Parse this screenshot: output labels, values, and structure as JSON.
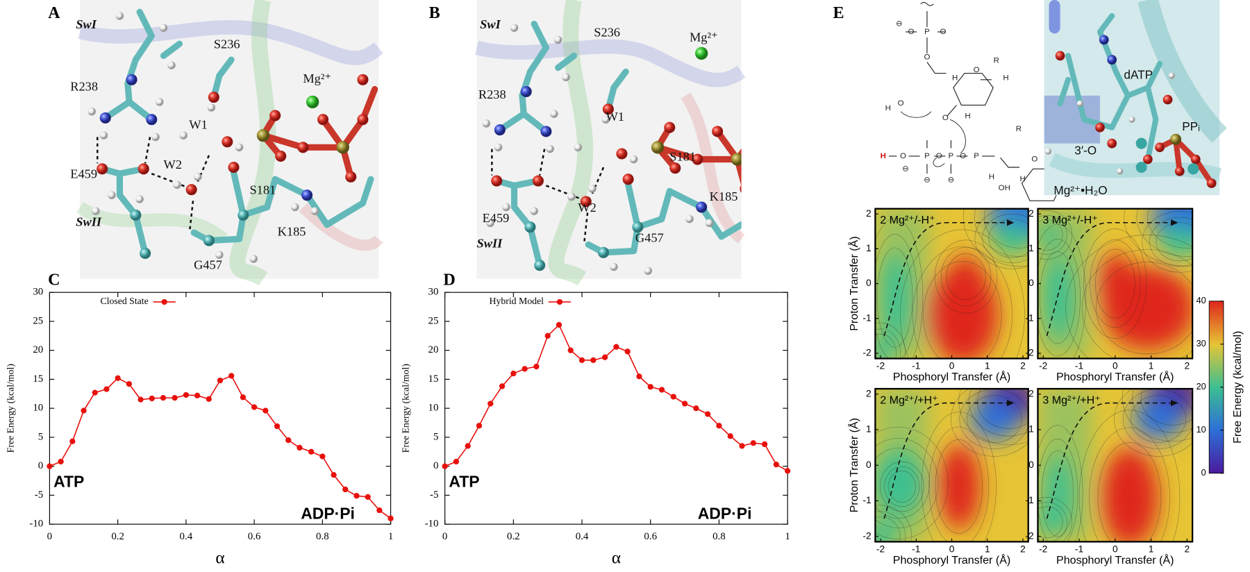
{
  "panels": {
    "A": {
      "label": "A",
      "labels": [
        "SwI",
        "S236",
        "Mg²⁺",
        "R238",
        "W1",
        "W2",
        "E459",
        "S181",
        "SwII",
        "K185",
        "G457"
      ]
    },
    "B": {
      "label": "B",
      "labels": [
        "SwI",
        "S236",
        "Mg²⁺",
        "R238",
        "W1",
        "S181",
        "K185",
        "E459",
        "W2",
        "SwII",
        "G457"
      ]
    },
    "E": {
      "label": "E",
      "scheme": [
        "⊖",
        "O",
        "P",
        "O",
        "O",
        "O",
        "H",
        "H",
        "R",
        "H",
        "O",
        "H",
        "O",
        "H",
        "O",
        "P",
        "O",
        "P",
        "O",
        "P",
        "O",
        "R",
        "H",
        "H",
        "OH",
        "⊖",
        "⊖",
        "⊖"
      ],
      "structure": [
        "dATP",
        "PPᵢ",
        "3′-O",
        "Mg²⁺•H₂O"
      ]
    }
  },
  "chart_data": [
    {
      "type": "line",
      "panel_label": "C",
      "xlabel": "α",
      "ylabel": "Free Energy (kcal/mol)",
      "xlim": [
        0,
        1
      ],
      "ylim": [
        -10,
        30
      ],
      "xticks": [
        0,
        0.2,
        0.4,
        0.6,
        0.8,
        1
      ],
      "yticks": [
        -10,
        -5,
        0,
        5,
        10,
        15,
        20,
        25,
        30
      ],
      "x": [
        0,
        0.033,
        0.067,
        0.1,
        0.133,
        0.167,
        0.2,
        0.233,
        0.267,
        0.3,
        0.333,
        0.367,
        0.4,
        0.433,
        0.467,
        0.5,
        0.533,
        0.567,
        0.6,
        0.633,
        0.667,
        0.7,
        0.733,
        0.767,
        0.8,
        0.833,
        0.867,
        0.9,
        0.933,
        0.967,
        1
      ],
      "series": [
        {
          "name": "Closed State",
          "color": "#e8100c",
          "values": [
            0,
            0.8,
            4.3,
            9.6,
            12.7,
            13.3,
            15.2,
            14.2,
            11.5,
            11.7,
            11.8,
            11.8,
            12.3,
            12.2,
            11.6,
            14.8,
            15.6,
            11.9,
            10.2,
            9.6,
            6.9,
            4.5,
            3.2,
            2.5,
            1.7,
            -1.5,
            -4.0,
            -5.1,
            -5.3,
            -7.6,
            -9.0
          ]
        }
      ],
      "annotations": [
        "ATP",
        "ADP·Pi"
      ],
      "legend": "upper left"
    },
    {
      "type": "line",
      "panel_label": "D",
      "xlabel": "α",
      "ylabel": "Free Energy (kcal/mol)",
      "xlim": [
        0,
        1
      ],
      "ylim": [
        -10,
        30
      ],
      "xticks": [
        0,
        0.2,
        0.4,
        0.6,
        0.8,
        1
      ],
      "yticks": [
        -10,
        -5,
        0,
        5,
        10,
        15,
        20,
        25,
        30
      ],
      "x": [
        0,
        0.033,
        0.067,
        0.1,
        0.133,
        0.167,
        0.2,
        0.233,
        0.267,
        0.3,
        0.333,
        0.367,
        0.4,
        0.433,
        0.467,
        0.5,
        0.533,
        0.567,
        0.6,
        0.633,
        0.667,
        0.7,
        0.733,
        0.767,
        0.8,
        0.833,
        0.867,
        0.9,
        0.933,
        0.967,
        1
      ],
      "series": [
        {
          "name": "Hybrid Model",
          "color": "#e8100c",
          "values": [
            0,
            0.8,
            3.5,
            7.0,
            10.8,
            13.8,
            16.0,
            16.8,
            17.2,
            22.5,
            24.4,
            20.0,
            18.3,
            18.3,
            18.8,
            20.6,
            19.8,
            15.5,
            13.7,
            13.2,
            12.0,
            10.8,
            10.0,
            9.0,
            7.0,
            5.2,
            3.5,
            4.0,
            3.8,
            0.3,
            -0.8
          ]
        }
      ],
      "annotations": [
        "ATP",
        "ADP·Pi"
      ],
      "legend": "upper left"
    },
    {
      "type": "contour",
      "title": "2 Mg²⁺/-H⁺",
      "xlabel": "Phosphoryl Transfer (Å)",
      "ylabel": "Proton Transfer (Å)",
      "xlim": [
        -2.15,
        2.15
      ],
      "ylim": [
        -2.15,
        2.15
      ],
      "xticks": [
        -2,
        -1,
        0,
        1,
        2
      ],
      "yticks": [
        -2,
        -1,
        0,
        1,
        2
      ]
    },
    {
      "type": "contour",
      "title": "3 Mg²⁺/-H⁺",
      "xlabel": "Phosphoryl Transfer (Å)",
      "xlim": [
        -2.15,
        2.15
      ],
      "ylim": [
        -2.15,
        2.15
      ],
      "xticks": [
        -2,
        -1,
        0,
        1,
        2
      ],
      "yticks": [
        -2,
        -1,
        0,
        1,
        2
      ]
    },
    {
      "type": "contour",
      "title": "2 Mg²⁺/+H⁺",
      "xlabel": "Phosphoryl Transfer (Å)",
      "ylabel": "Proton Transfer (Å)",
      "xlim": [
        -2.15,
        2.15
      ],
      "ylim": [
        -2.15,
        2.15
      ],
      "xticks": [
        -2,
        -1,
        0,
        1,
        2
      ],
      "yticks": [
        -2,
        -1,
        0,
        1,
        2
      ]
    },
    {
      "type": "contour",
      "title": "3 Mg²⁺/+H⁺",
      "xlabel": "Phosphoryl Transfer (Å)",
      "xlim": [
        -2.15,
        2.15
      ],
      "ylim": [
        -2.15,
        2.15
      ],
      "xticks": [
        -2,
        -1,
        0,
        1,
        2
      ],
      "yticks": [
        -2,
        -1,
        0,
        1,
        2
      ]
    },
    {
      "type": "colorbar",
      "label": "Free Energy (kcal/mol)",
      "ylim": [
        0,
        40
      ],
      "yticks": [
        0,
        10,
        20,
        30,
        40
      ],
      "colors": [
        "#4a1a9c",
        "#2d6fd8",
        "#3dbf90",
        "#e6c435",
        "#df261c"
      ]
    }
  ]
}
